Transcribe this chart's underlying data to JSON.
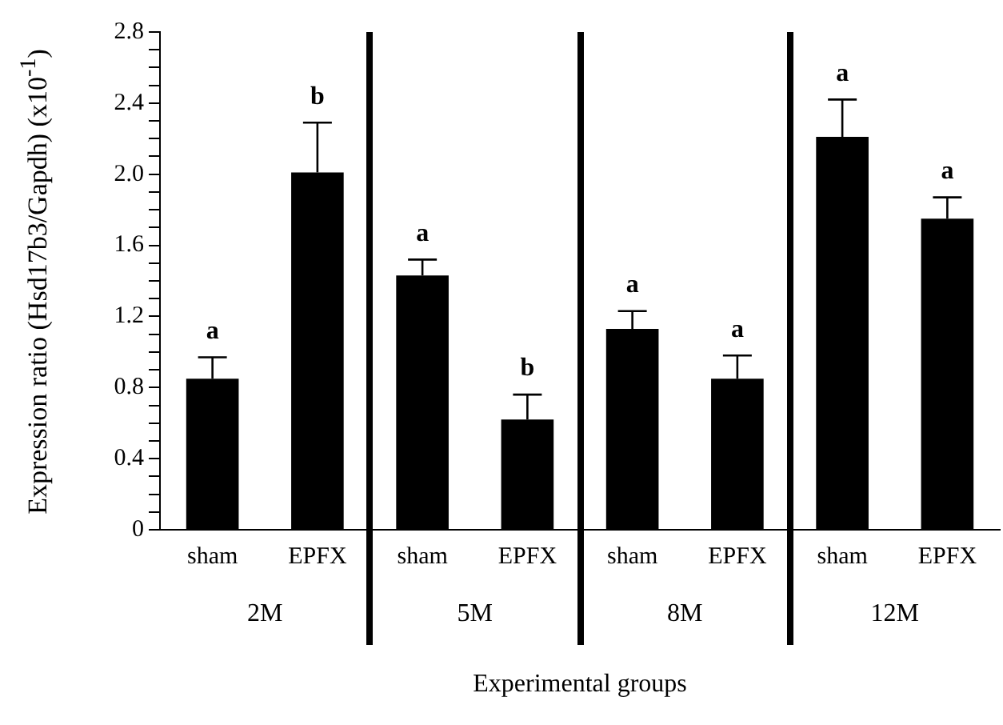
{
  "chart_data": {
    "type": "bar",
    "xlabel": "Experimental groups",
    "ylabel": "Expression ratio (Hsd17b3/Gapdh) (x10$^{-1}$)",
    "categories": [
      "sham",
      "EPFX",
      "sham",
      "EPFX",
      "sham",
      "EPFX",
      "sham",
      "EPFX"
    ],
    "values": [
      0.85,
      2.01,
      1.43,
      0.62,
      1.13,
      0.85,
      2.21,
      1.75
    ],
    "errors": [
      [
        0.85,
        0.97
      ],
      [
        2.01,
        2.29
      ],
      [
        1.43,
        1.52
      ],
      [
        0.62,
        0.76
      ],
      [
        1.13,
        1.23
      ],
      [
        0.85,
        0.98
      ],
      [
        2.21,
        2.42
      ],
      [
        1.75,
        1.87
      ]
    ],
    "color": "#000000",
    "ylim": [
      0,
      2.8
    ],
    "yticks": [
      0,
      {
        "value": 0.1,
        "label": null
      },
      {
        "value": 0.2,
        "label": null
      },
      {
        "value": 0.3,
        "label": null
      },
      0.4,
      {
        "value": 0.5,
        "label": null
      },
      {
        "value": 0.6,
        "label": null
      },
      {
        "value": 0.7,
        "label": null
      },
      0.8,
      {
        "value": 0.9,
        "label": null
      },
      {
        "value": 1,
        "label": null
      },
      {
        "value": 1.1,
        "label": null
      },
      1.2,
      {
        "value": 1.3,
        "label": null
      },
      {
        "value": 1.4,
        "label": null
      },
      {
        "value": 1.5,
        "label": null
      },
      1.6,
      {
        "value": 1.7,
        "label": null
      },
      {
        "value": 1.8,
        "label": null
      },
      {
        "value": 1.9,
        "label": null
      },
      {
        "value": 2,
        "label": "2.0"
      },
      {
        "value": 2.1,
        "label": null
      },
      {
        "value": 2.2,
        "label": null
      },
      {
        "value": 2.3,
        "label": null
      },
      2.4,
      {
        "value": 2.5,
        "label": null
      },
      {
        "value": 2.6,
        "label": null
      },
      {
        "value": 2.7,
        "label": null
      },
      2.8
    ],
    "annotations": [
      {
        "text": "a",
        "y": 0.97
      },
      {
        "text": "b",
        "y": 2.29
      },
      {
        "text": "a",
        "y": 1.52
      },
      {
        "text": "b",
        "y": 0.76
      },
      {
        "text": "a",
        "y": 1.23
      },
      {
        "text": "a",
        "y": 0.98
      },
      {
        "text": "a",
        "y": 2.42
      },
      {
        "text": "a",
        "y": 1.87
      },
      "2M",
      "5M",
      "8M",
      "12M"
    ],
    "grid": false,
    "legend": false
  }
}
